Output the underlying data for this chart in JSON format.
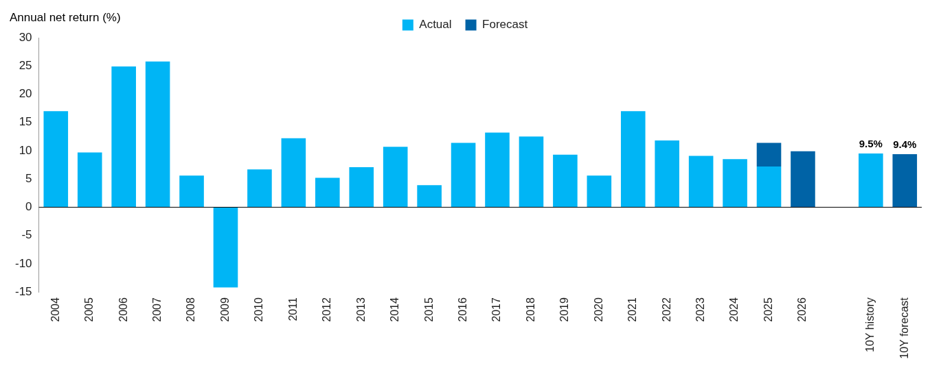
{
  "chart_data": {
    "type": "bar",
    "ylabel": "Annual net return (%)",
    "categories": [
      "2004",
      "2005",
      "2006",
      "2007",
      "2008",
      "2009",
      "2010",
      "2011",
      "2012",
      "2013",
      "2014",
      "2015",
      "2016",
      "2017",
      "2018",
      "2019",
      "2020",
      "2021",
      "2022",
      "2023",
      "2024",
      "2025",
      "2026",
      null,
      "10Y history",
      "10Y forecast"
    ],
    "series": [
      {
        "name": "Actual",
        "color": "#00b5f5",
        "values": [
          17,
          9.7,
          24.9,
          25.8,
          5.6,
          -14.2,
          6.7,
          12.2,
          5.2,
          7.1,
          10.7,
          3.9,
          11.4,
          13.2,
          12.5,
          9.3,
          5.6,
          17,
          11.8,
          9.1,
          8.5,
          7.2,
          null,
          null,
          9.5,
          null
        ],
        "value_labels": [
          null,
          null,
          null,
          null,
          null,
          null,
          null,
          null,
          null,
          null,
          null,
          null,
          null,
          null,
          null,
          null,
          null,
          null,
          null,
          null,
          null,
          null,
          null,
          null,
          "9.5%",
          null
        ]
      },
      {
        "name": "Forecast",
        "color": "#0063a6",
        "values": [
          null,
          null,
          null,
          null,
          null,
          null,
          null,
          null,
          null,
          null,
          null,
          null,
          null,
          null,
          null,
          null,
          null,
          null,
          null,
          null,
          null,
          4.2,
          9.9,
          null,
          null,
          9.4
        ],
        "value_labels": [
          null,
          null,
          null,
          null,
          null,
          null,
          null,
          null,
          null,
          null,
          null,
          null,
          null,
          null,
          null,
          null,
          null,
          null,
          null,
          null,
          null,
          null,
          null,
          null,
          null,
          "9.4%"
        ]
      }
    ],
    "stacked": true,
    "ylim": [
      -15,
      30
    ],
    "yticks": [
      -15,
      -10,
      -5,
      0,
      5,
      10,
      15,
      20,
      25,
      30
    ],
    "grid": false,
    "legend": "top",
    "ref_lines": [
      {
        "axis": "y",
        "value": 0,
        "color": "#000000"
      }
    ]
  }
}
